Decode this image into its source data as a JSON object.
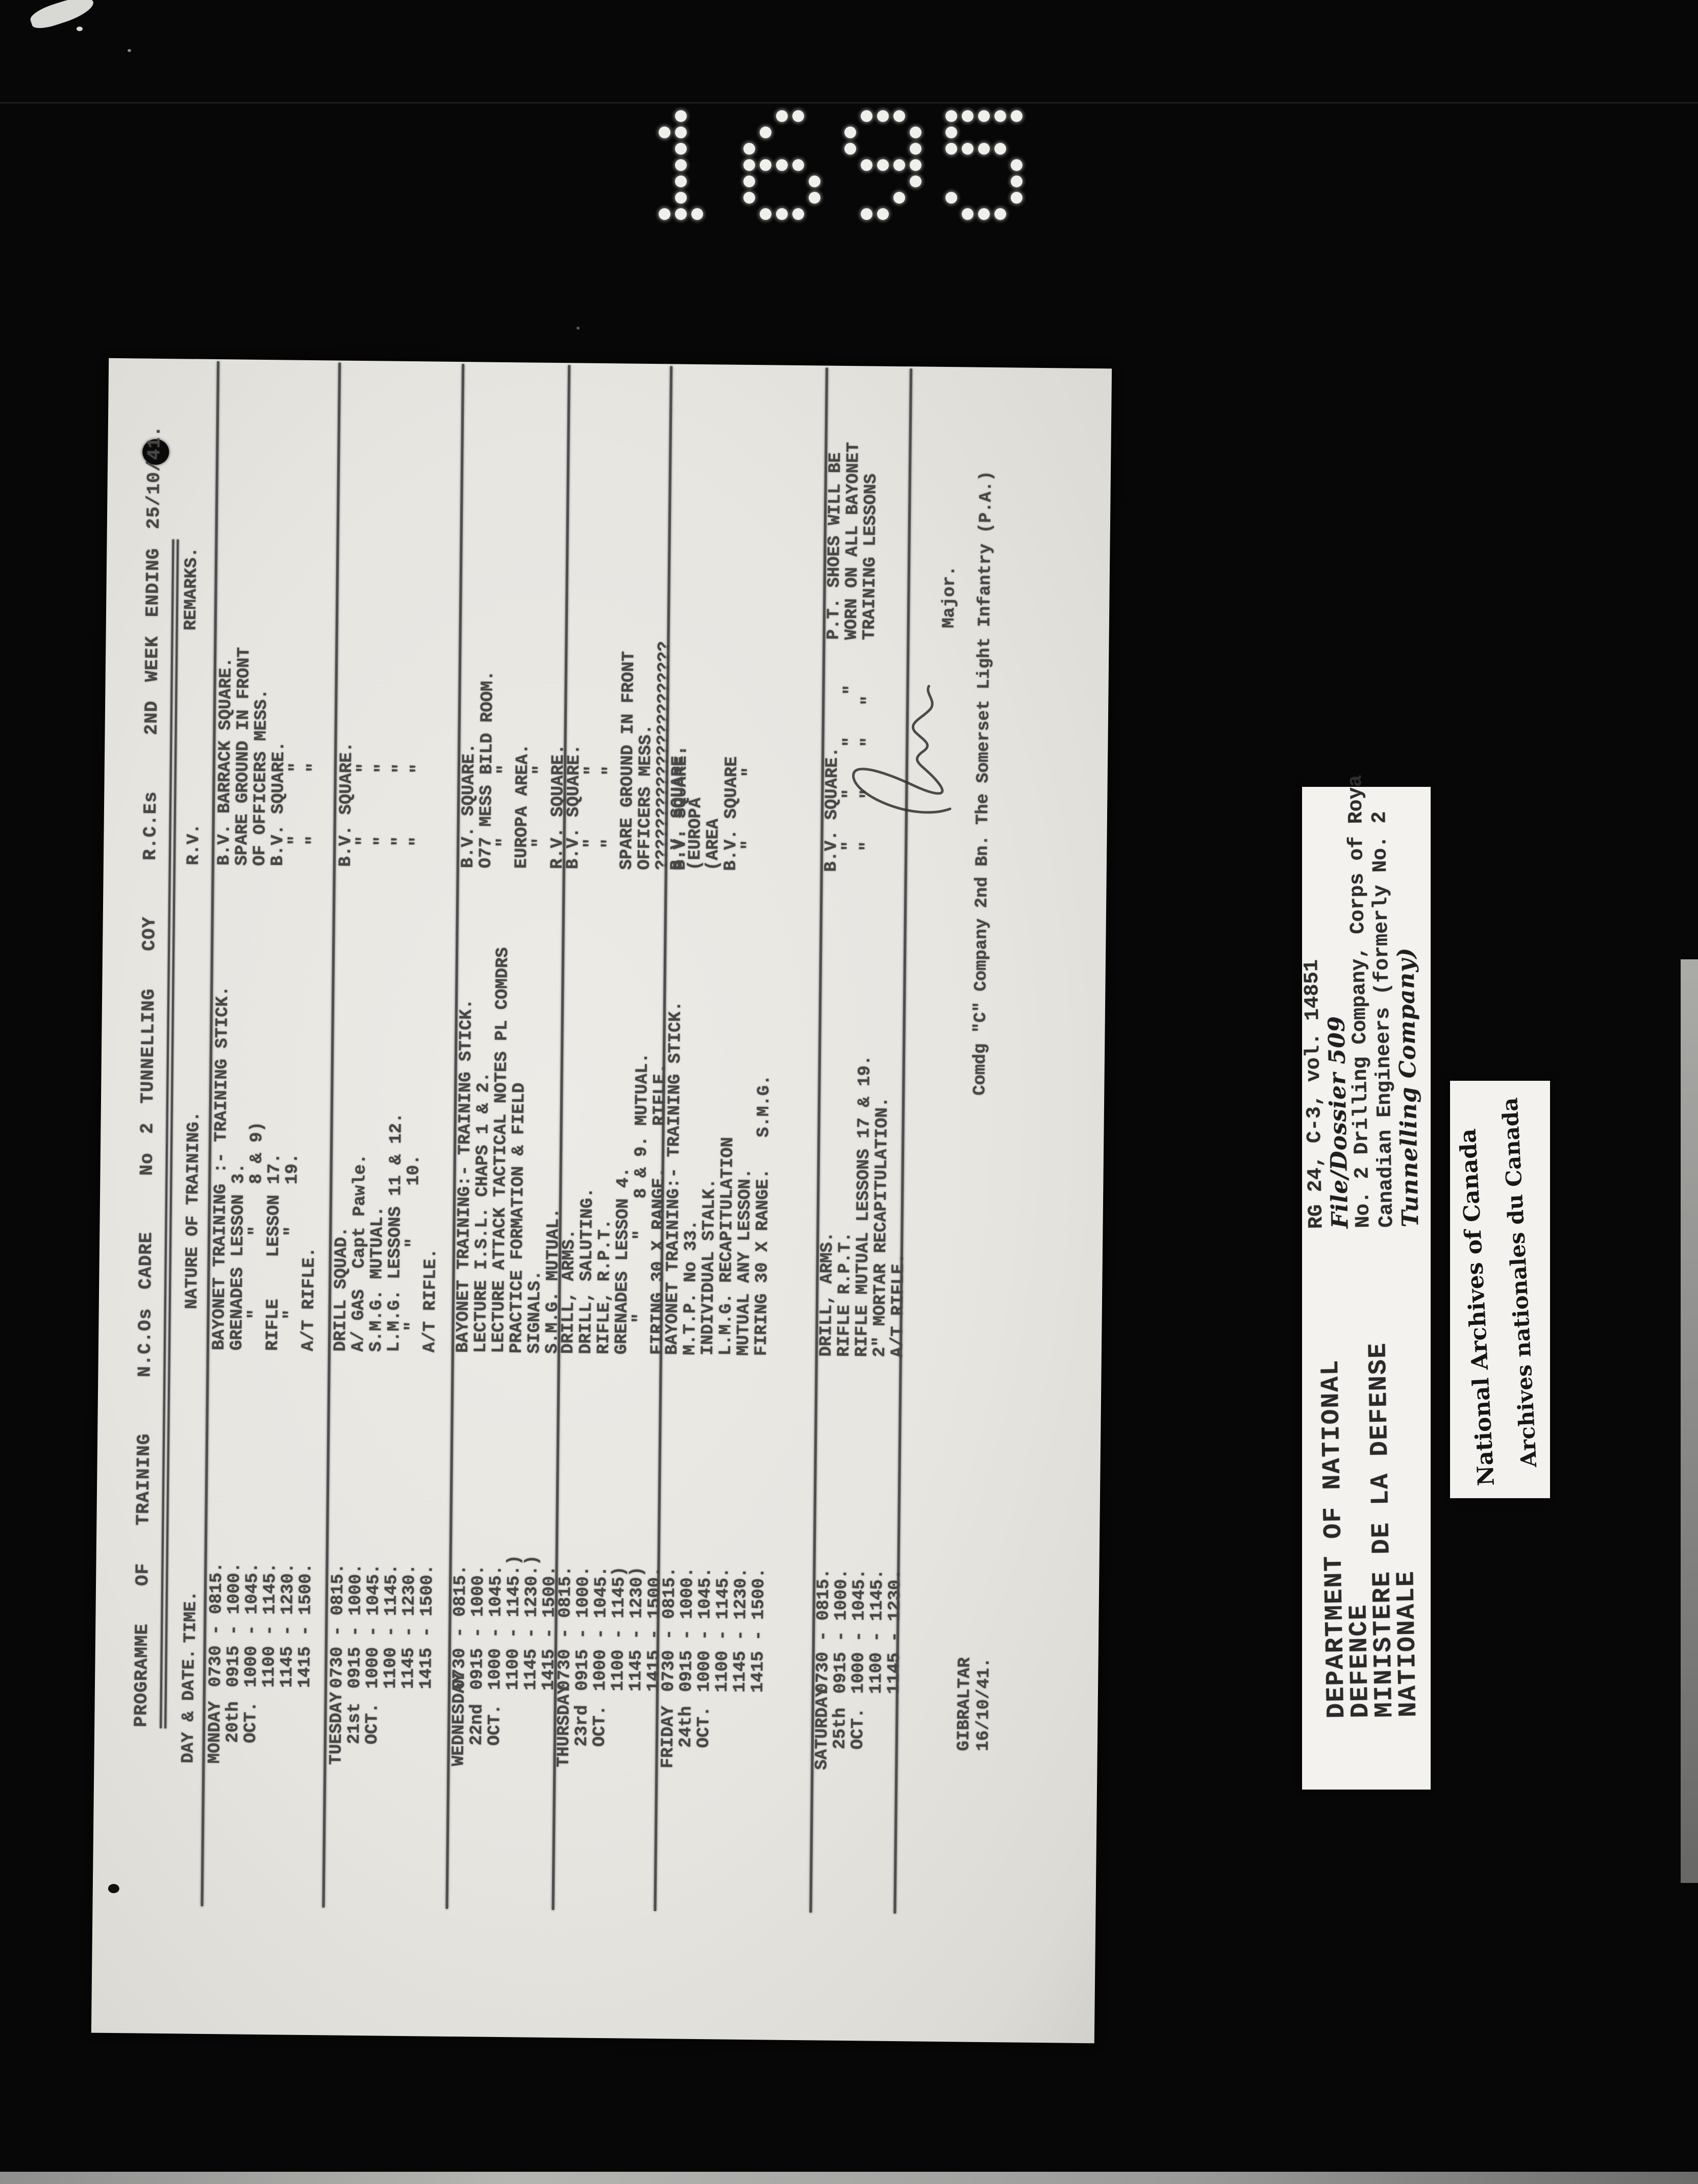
{
  "stamp_number": "1695",
  "document": {
    "title": "PROGRAMME  OF  TRAINING   N.C.Os CADRE   No 2 TUNNELLING  COY   R.C.Es   2ND WEEK ENDING 25/10/41.",
    "headers": {
      "day_date": "DAY & DATE.",
      "time": "TIME.",
      "nature": "NATURE OF TRAINING.",
      "rv": "R.V.",
      "remarks": "REMARKS."
    },
    "rows": [
      {
        "day": [
          "MONDAY",
          "  20th",
          "  OCT."
        ],
        "time": [
          "0730 - 0815.",
          "0915 - 1000.",
          "1000 - 1045.",
          "1100 - 1145.",
          "1145 - 1230.",
          "1415 - 1500."
        ],
        "nature": [
          "BAYONET TRAINING :- TRAINING STICK.",
          "GRENADES LESSON 3.",
          "   \"       \"    8 & 9)",
          "RIFLE    LESSON 17.",
          "   \"       \"    19.",
          "A/T RIFLE."
        ],
        "rv": [
          "B.V. BARRACK SQUARE.",
          "SPARE GROUND IN FRONT",
          "OF OFFICERS MESS.",
          "B.V. SQUARE.",
          "  \"      \"",
          "  \"      \""
        ],
        "remarks": []
      },
      {
        "day": [
          "TUESDAY",
          "  21st",
          "  OCT."
        ],
        "time": [
          "0730 - 0815.",
          "0915 - 1000.",
          "1000 - 1045.",
          "1100 - 1145.",
          "1145 - 1230.",
          "1415 - 1500."
        ],
        "nature": [
          "DRILL SQUAD.",
          "A/ GAS  Capt Pawle.",
          "S.M.G. MUTUAL.",
          "L.M.G. LESSONS 11 & 12.",
          "  \"       \"     10.",
          "A/T RIFLE."
        ],
        "rv": [
          "B.V. SQUARE.",
          "  \"      \"",
          "  \"      \"",
          "  \"      \"",
          "  \"      \""
        ],
        "remarks": []
      },
      {
        "day": [
          "WEDNESDAY",
          "  22nd",
          "  OCT."
        ],
        "time": [
          "0730 - 0815.",
          "0915 - 1000.",
          "1000 - 1045.",
          "1100 - 1145.)",
          "1145 - 1230.)",
          "1415 - 1500."
        ],
        "nature": [
          "BAYONET TRAINING:- TRAINING STICK.",
          "LECTURE I.S.L. CHAPS 1 & 2.",
          "LECTURE ATTACK TACTICAL NOTES PL COMDRS",
          "PRACTICE FORMATION & FIELD",
          "SIGNALS.",
          "S.M.G. MUTUAL."
        ],
        "rv": [
          "B.V. SQUARE.",
          "O77 MESS BILD ROOM.",
          "  \"      \"",
          "EUROPA AREA.",
          "  \"      \"",
          "R.V. SQUARE."
        ],
        "remarks": []
      },
      {
        "day": [
          "THURSDAY",
          "  23rd",
          "  OCT."
        ],
        "time": [
          "0730 - 0815.",
          "0915 - 1000.",
          "1000 - 1045.",
          "1100 - 1145)",
          "1145 - 1230)",
          "1415 - 1500."
        ],
        "nature": [
          "DRILL, ARMS.",
          "DRILL, SALUTING.",
          "RIFLE, R.P.T.",
          "GRENADES LESSON 4.",
          "   \"       \"   8 & 9. MUTUAL.",
          "FIRING 30 X RANGE.    RIFLE."
        ],
        "rv": [
          "B.V. SQUARE.",
          "  \"      \"",
          "  \"      \"",
          "SPARE GROUND IN FRONT",
          "OFFICERS MESS.",
          "??????????????????????",
          "B.V. SQUARE."
        ],
        "remarks": []
      },
      {
        "day": [
          "FRIDAY",
          "  24th",
          "  OCT."
        ],
        "time": [
          "0730 - 0815.",
          "0915 - 1000.",
          "1000 - 1045.",
          "1100 - 1145.",
          "1145 - 1230.",
          "1415 - 1500."
        ],
        "nature": [
          "BAYONET TRAINING:- TRAINING STICK.",
          "M.T.P. No 33.",
          "INDIVIDUAL STALK.",
          "L.M.G. RECAPITULATION",
          "MUTUAL ANY LESSON.",
          "FIRING 30 X RANGE.   S.M.G."
        ],
        "rv": [
          "B.V. SQUARE.",
          "(EUROPA",
          "(AREA",
          "B.V. SQUARE",
          "  \"      \""
        ],
        "remarks": []
      },
      {
        "day": [
          "SATURDAY",
          "  25th",
          "  OCT."
        ],
        "time": [
          "0730 - 0815.",
          "0915 - 1000.",
          "1000 - 1045.",
          "1100 - 1145.",
          "1145 - 1230."
        ],
        "nature": [
          "DRILL, ARMS.",
          "RIFLE R.P.T.",
          "RIFLE MUTUAL LESSONS 17 & 19.",
          "2\" MORTAR RECAPITULATION.",
          "A/T RIFLE."
        ],
        "rv": [
          "B.V. SQUARE.",
          "  \"    \"    \"    \"",
          "  \"    \"    \"   \""
        ],
        "remarks": [
          "P.T. SHOES WILL BE",
          "WORN ON ALL BAYONET",
          "TRAINING LESSONS"
        ]
      }
    ],
    "footer": {
      "place": "GIBRALTAR",
      "date": "16/10/41.",
      "rank": "Major.",
      "command": "Comdg \"C\" Company 2nd Bn. The Somerset Light Infantry (P.A.)"
    }
  },
  "labels": {
    "department": {
      "lines": [
        "DEPARTMENT OF NATIONAL",
        "DEFENCE",
        "MINISTERE DE LA DEFENSE",
        "NATIONALE"
      ]
    },
    "reference": {
      "lines": [
        {
          "text": "RG 24, C-3, vol. 14851",
          "style": "typed"
        },
        {
          "text": "File/Dossier 509",
          "style": "hand"
        },
        {
          "text": "No. 2 Drilling Company, Corps of Roya",
          "style": "typed"
        },
        {
          "text": "Canadian Engineers (formerly No. 2",
          "style": "typed"
        },
        {
          "text": "Tunnelling Company)",
          "style": "hand"
        }
      ]
    },
    "archives": {
      "line1": "National Archives of Canada",
      "line2": "Archives nationales du Canada"
    }
  }
}
